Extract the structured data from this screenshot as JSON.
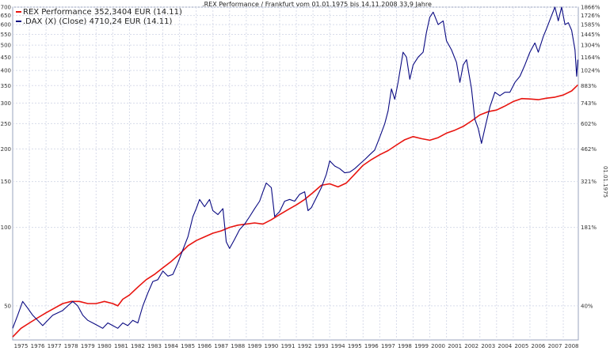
{
  "chart_data": {
    "type": "line",
    "title": ".REX Performance / Frankfurt vom 01.01.1975 bis 14.11.2008 33,9 Jahre",
    "right_axis_label": "01.01.1975",
    "y_scale": "log",
    "ylim": [
      37,
      700
    ],
    "xlim": [
      1975.0,
      2008.9
    ],
    "grid": true,
    "legend_position": "top-left",
    "left_ticks": [
      {
        "v": 50,
        "label": "50"
      },
      {
        "v": 100,
        "label": "100"
      },
      {
        "v": 150,
        "label": "150"
      },
      {
        "v": 200,
        "label": "200"
      },
      {
        "v": 250,
        "label": "250"
      },
      {
        "v": 300,
        "label": "300"
      },
      {
        "v": 350,
        "label": "350"
      },
      {
        "v": 400,
        "label": "400"
      },
      {
        "v": 450,
        "label": "450"
      },
      {
        "v": 500,
        "label": "500"
      },
      {
        "v": 550,
        "label": "550"
      },
      {
        "v": 600,
        "label": "600"
      },
      {
        "v": 650,
        "label": "650"
      },
      {
        "v": 700,
        "label": "700"
      }
    ],
    "right_ticks": [
      {
        "v": 700,
        "label": "1866%"
      },
      {
        "v": 650,
        "label": "1726%"
      },
      {
        "v": 600,
        "label": "1585%"
      },
      {
        "v": 550,
        "label": "1445%"
      },
      {
        "v": 500,
        "label": "1304%"
      },
      {
        "v": 450,
        "label": "1164%"
      },
      {
        "v": 400,
        "label": "1024%"
      },
      {
        "v": 350,
        "label": "883%"
      },
      {
        "v": 300,
        "label": "743%"
      },
      {
        "v": 250,
        "label": "602%"
      },
      {
        "v": 200,
        "label": "462%"
      },
      {
        "v": 150,
        "label": "321%"
      },
      {
        "v": 100,
        "label": "181%"
      },
      {
        "v": 50,
        "label": "40%"
      }
    ],
    "x_ticks": [
      "1975",
      "1976",
      "1977",
      "1978",
      "1979",
      "1980",
      "1981",
      "1982",
      "1983",
      "1984",
      "1985",
      "1986",
      "1987",
      "1988",
      "1989",
      "1990",
      "1991",
      "1992",
      "1993",
      "1994",
      "1995",
      "1996",
      "1997",
      "1998",
      "1999",
      "2000",
      "2001",
      "2002",
      "2003",
      "2004",
      "2005",
      "2006",
      "2007",
      "2008"
    ],
    "series": [
      {
        "name": "REX Performance 352,3404 EUR (14.11)",
        "color": "#e8140f",
        "points": [
          [
            1975.0,
            38
          ],
          [
            1975.5,
            41
          ],
          [
            1976.0,
            43
          ],
          [
            1976.5,
            45
          ],
          [
            1977.0,
            47
          ],
          [
            1977.5,
            49
          ],
          [
            1978.0,
            51
          ],
          [
            1978.5,
            52
          ],
          [
            1979.0,
            52
          ],
          [
            1979.5,
            51
          ],
          [
            1980.0,
            51
          ],
          [
            1980.5,
            52
          ],
          [
            1981.0,
            51
          ],
          [
            1981.3,
            50
          ],
          [
            1981.6,
            53
          ],
          [
            1982.0,
            55
          ],
          [
            1982.5,
            59
          ],
          [
            1983.0,
            63
          ],
          [
            1983.5,
            66
          ],
          [
            1984.0,
            70
          ],
          [
            1984.5,
            74
          ],
          [
            1985.0,
            79
          ],
          [
            1985.5,
            85
          ],
          [
            1986.0,
            89
          ],
          [
            1986.5,
            92
          ],
          [
            1987.0,
            95
          ],
          [
            1987.5,
            97
          ],
          [
            1988.0,
            100
          ],
          [
            1988.5,
            102
          ],
          [
            1989.0,
            103
          ],
          [
            1989.5,
            104
          ],
          [
            1990.0,
            103
          ],
          [
            1990.5,
            107
          ],
          [
            1991.0,
            112
          ],
          [
            1991.5,
            117
          ],
          [
            1992.0,
            122
          ],
          [
            1992.5,
            128
          ],
          [
            1993.0,
            136
          ],
          [
            1993.5,
            145
          ],
          [
            1994.0,
            147
          ],
          [
            1994.5,
            143
          ],
          [
            1995.0,
            148
          ],
          [
            1995.5,
            160
          ],
          [
            1996.0,
            173
          ],
          [
            1996.5,
            182
          ],
          [
            1997.0,
            190
          ],
          [
            1997.5,
            197
          ],
          [
            1998.0,
            207
          ],
          [
            1998.5,
            217
          ],
          [
            1999.0,
            223
          ],
          [
            1999.5,
            219
          ],
          [
            2000.0,
            216
          ],
          [
            2000.5,
            221
          ],
          [
            2001.0,
            230
          ],
          [
            2001.5,
            236
          ],
          [
            2002.0,
            244
          ],
          [
            2002.5,
            256
          ],
          [
            2003.0,
            270
          ],
          [
            2003.5,
            278
          ],
          [
            2004.0,
            282
          ],
          [
            2004.5,
            292
          ],
          [
            2005.0,
            304
          ],
          [
            2005.5,
            312
          ],
          [
            2006.0,
            311
          ],
          [
            2006.5,
            309
          ],
          [
            2007.0,
            313
          ],
          [
            2007.5,
            316
          ],
          [
            2008.0,
            322
          ],
          [
            2008.5,
            334
          ],
          [
            2008.87,
            352
          ]
        ]
      },
      {
        "name": ".DAX (X) (Close) 4710,24 EUR (14.11)",
        "color": "#0a0a82",
        "points": [
          [
            1975.0,
            41
          ],
          [
            1975.3,
            46
          ],
          [
            1975.6,
            52
          ],
          [
            1975.9,
            49
          ],
          [
            1976.2,
            46
          ],
          [
            1976.5,
            44
          ],
          [
            1976.8,
            42
          ],
          [
            1977.1,
            44
          ],
          [
            1977.4,
            46
          ],
          [
            1977.7,
            47
          ],
          [
            1978.0,
            48
          ],
          [
            1978.3,
            50
          ],
          [
            1978.6,
            52
          ],
          [
            1978.9,
            50
          ],
          [
            1979.2,
            46
          ],
          [
            1979.5,
            44
          ],
          [
            1979.8,
            43
          ],
          [
            1980.1,
            42
          ],
          [
            1980.4,
            41
          ],
          [
            1980.7,
            43
          ],
          [
            1981.0,
            42
          ],
          [
            1981.3,
            41
          ],
          [
            1981.6,
            43
          ],
          [
            1981.9,
            42
          ],
          [
            1982.2,
            44
          ],
          [
            1982.5,
            43
          ],
          [
            1982.8,
            50
          ],
          [
            1983.1,
            56
          ],
          [
            1983.4,
            62
          ],
          [
            1983.7,
            63
          ],
          [
            1984.0,
            68
          ],
          [
            1984.3,
            65
          ],
          [
            1984.6,
            66
          ],
          [
            1984.9,
            73
          ],
          [
            1985.2,
            82
          ],
          [
            1985.5,
            92
          ],
          [
            1985.8,
            110
          ],
          [
            1986.0,
            118
          ],
          [
            1986.2,
            128
          ],
          [
            1986.5,
            120
          ],
          [
            1986.8,
            128
          ],
          [
            1987.0,
            116
          ],
          [
            1987.3,
            112
          ],
          [
            1987.6,
            118
          ],
          [
            1987.8,
            88
          ],
          [
            1988.0,
            83
          ],
          [
            1988.3,
            90
          ],
          [
            1988.6,
            98
          ],
          [
            1988.9,
            103
          ],
          [
            1989.2,
            110
          ],
          [
            1989.5,
            118
          ],
          [
            1989.8,
            126
          ],
          [
            1990.0,
            137
          ],
          [
            1990.2,
            148
          ],
          [
            1990.5,
            142
          ],
          [
            1990.7,
            110
          ],
          [
            1991.0,
            115
          ],
          [
            1991.3,
            126
          ],
          [
            1991.6,
            128
          ],
          [
            1991.9,
            126
          ],
          [
            1992.2,
            134
          ],
          [
            1992.5,
            137
          ],
          [
            1992.7,
            116
          ],
          [
            1992.9,
            119
          ],
          [
            1993.2,
            130
          ],
          [
            1993.5,
            142
          ],
          [
            1993.8,
            160
          ],
          [
            1994.0,
            180
          ],
          [
            1994.3,
            172
          ],
          [
            1994.6,
            168
          ],
          [
            1994.9,
            162
          ],
          [
            1995.2,
            163
          ],
          [
            1995.5,
            168
          ],
          [
            1995.8,
            175
          ],
          [
            1996.1,
            182
          ],
          [
            1996.4,
            190
          ],
          [
            1996.7,
            198
          ],
          [
            1997.0,
            222
          ],
          [
            1997.3,
            250
          ],
          [
            1997.5,
            280
          ],
          [
            1997.7,
            340
          ],
          [
            1997.9,
            310
          ],
          [
            1998.1,
            360
          ],
          [
            1998.4,
            470
          ],
          [
            1998.6,
            450
          ],
          [
            1998.8,
            370
          ],
          [
            1999.0,
            420
          ],
          [
            1999.3,
            450
          ],
          [
            1999.6,
            470
          ],
          [
            1999.8,
            560
          ],
          [
            2000.0,
            640
          ],
          [
            2000.2,
            670
          ],
          [
            2000.5,
            600
          ],
          [
            2000.8,
            620
          ],
          [
            2001.0,
            520
          ],
          [
            2001.3,
            480
          ],
          [
            2001.6,
            430
          ],
          [
            2001.8,
            360
          ],
          [
            2002.0,
            420
          ],
          [
            2002.2,
            440
          ],
          [
            2002.5,
            340
          ],
          [
            2002.7,
            260
          ],
          [
            2002.9,
            240
          ],
          [
            2003.1,
            210
          ],
          [
            2003.3,
            240
          ],
          [
            2003.6,
            290
          ],
          [
            2003.9,
            330
          ],
          [
            2004.2,
            320
          ],
          [
            2004.5,
            330
          ],
          [
            2004.8,
            330
          ],
          [
            2005.1,
            360
          ],
          [
            2005.4,
            380
          ],
          [
            2005.7,
            420
          ],
          [
            2006.0,
            470
          ],
          [
            2006.3,
            510
          ],
          [
            2006.5,
            470
          ],
          [
            2006.8,
            540
          ],
          [
            2007.0,
            580
          ],
          [
            2007.3,
            650
          ],
          [
            2007.5,
            700
          ],
          [
            2007.7,
            620
          ],
          [
            2007.9,
            700
          ],
          [
            2008.1,
            600
          ],
          [
            2008.3,
            610
          ],
          [
            2008.5,
            570
          ],
          [
            2008.7,
            480
          ],
          [
            2008.8,
            380
          ],
          [
            2008.87,
            440
          ]
        ]
      }
    ]
  }
}
